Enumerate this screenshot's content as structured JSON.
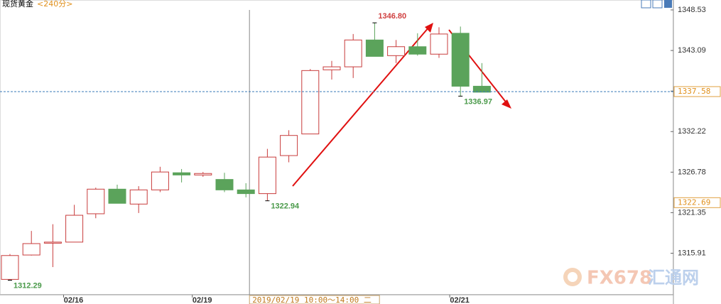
{
  "chart_data": {
    "type": "candlestick",
    "title": "现货黄金",
    "period": "<240分>",
    "categories": [
      null,
      null,
      null,
      "02/16",
      null,
      null,
      null,
      null,
      null,
      "02/19",
      null,
      null,
      null,
      null,
      null,
      null,
      null,
      null,
      null,
      null,
      null,
      "02/21",
      null
    ],
    "open": [
      1312.4,
      1315.67,
      1317.3,
      1317.4,
      1321.2,
      1324.5,
      1322.5,
      1324.4,
      1326.7,
      1326.4,
      1325.8,
      1324.4,
      1323.9,
      1329.0,
      1331.9,
      1340.5,
      1340.9,
      1344.5,
      1342.4,
      1343.6,
      1342.6,
      1345.4,
      1338.3
    ],
    "high": [
      1315.8,
      1318.9,
      1319.8,
      1322.4,
      1324.7,
      1325.1,
      1324.9,
      1327.5,
      1327.2,
      1326.8,
      1326.7,
      1325.3,
      1329.9,
      1332.4,
      1340.6,
      1341.7,
      1345.3,
      1346.8,
      1344.5,
      1345.4,
      1346.2,
      1346.3,
      1341.4
    ],
    "low": [
      1312.29,
      1315.6,
      1314.05,
      1317.4,
      1320.6,
      1322.6,
      1321.3,
      1324.1,
      1325.4,
      1326.15,
      1324.1,
      1323.4,
      1322.94,
      1328.1,
      1331.9,
      1339.2,
      1339.4,
      1342.3,
      1341.4,
      1342.4,
      1342.1,
      1336.97,
      1337.5
    ],
    "close": [
      1315.6,
      1317.2,
      1317.4,
      1321.0,
      1324.5,
      1322.6,
      1324.4,
      1326.8,
      1326.4,
      1326.6,
      1324.4,
      1323.9,
      1328.8,
      1331.7,
      1340.4,
      1340.9,
      1344.5,
      1342.3,
      1343.6,
      1342.6,
      1345.3,
      1338.3,
      1337.5
    ],
    "up_color": "#c83c3c",
    "down_color": "#5ba35b",
    "ylim": [
      1310.34,
      1349.86
    ],
    "yticks": [
      1348.53,
      1343.09,
      1337.65,
      1332.22,
      1326.78,
      1321.35,
      1315.91
    ],
    "annotations": [
      {
        "value": 1346.8,
        "label": "1346.80"
      },
      {
        "value": 1322.94,
        "label": "1322.94"
      },
      {
        "value": 1312.29,
        "label": "1312.29"
      },
      {
        "value": 1336.97,
        "label": "1336.97"
      }
    ],
    "last_price": 1337.58,
    "marker_price": 1322.69,
    "crosshair_label": "2019/02/19 10:00～14:00 二",
    "watermark": [
      "FX678",
      "汇通网"
    ]
  }
}
